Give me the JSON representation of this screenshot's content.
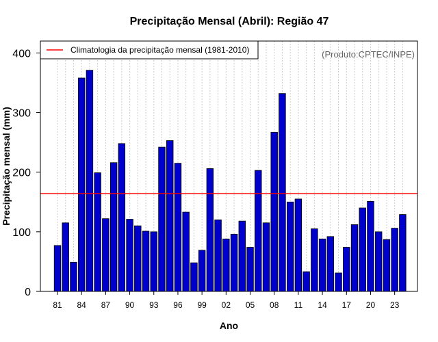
{
  "chart_data": {
    "type": "bar",
    "title": "Precipitação Mensal (Abril): Região 47",
    "xlabel": "Ano",
    "ylabel": "Precipitação mensal (mm)",
    "ylim": [
      0,
      420
    ],
    "yticks": [
      "0",
      "100",
      "200",
      "300",
      "400"
    ],
    "categories": [
      "1981",
      "1982",
      "1983",
      "1984",
      "1985",
      "1986",
      "1987",
      "1988",
      "1989",
      "1990",
      "1991",
      "1992",
      "1993",
      "1994",
      "1995",
      "1996",
      "1997",
      "1998",
      "1999",
      "2000",
      "2001",
      "2002",
      "2003",
      "2004",
      "2005",
      "2006",
      "2007",
      "2008",
      "2009",
      "2010",
      "2011",
      "2012",
      "2013",
      "2014",
      "2015",
      "2016",
      "2017",
      "2018",
      "2019",
      "2020",
      "2021",
      "2022",
      "2023",
      "2024"
    ],
    "values": [
      77,
      115,
      49,
      358,
      371,
      199,
      122,
      216,
      248,
      121,
      110,
      101,
      100,
      242,
      253,
      215,
      133,
      48,
      69,
      206,
      120,
      88,
      96,
      118,
      74,
      203,
      115,
      267,
      332,
      150,
      155,
      33,
      105,
      88,
      92,
      31,
      74,
      112,
      140,
      151,
      100,
      87,
      106,
      129
    ],
    "xtick_labels": [
      {
        "index": 0,
        "label": "81"
      },
      {
        "index": 3,
        "label": "84"
      },
      {
        "index": 6,
        "label": "87"
      },
      {
        "index": 9,
        "label": "90"
      },
      {
        "index": 12,
        "label": "93"
      },
      {
        "index": 15,
        "label": "96"
      },
      {
        "index": 18,
        "label": "99"
      },
      {
        "index": 21,
        "label": "02"
      },
      {
        "index": 24,
        "label": "05"
      },
      {
        "index": 27,
        "label": "08"
      },
      {
        "index": 30,
        "label": "11"
      },
      {
        "index": 33,
        "label": "14"
      },
      {
        "index": 36,
        "label": "17"
      },
      {
        "index": 39,
        "label": "20"
      },
      {
        "index": 42,
        "label": "23"
      }
    ],
    "climatology": {
      "label": "Climatologia da precipitação mensal (1981-2010)",
      "value": 164
    },
    "legend_position": "top-left",
    "annotation": "(Produto:CPTEC/INPE)",
    "grid": "vertical dotted",
    "colors": {
      "bar_fill": "#0000cd",
      "bar_stroke": "#000000",
      "line": "#ff0000",
      "grid": "#cccccc",
      "annotation": "#666666"
    }
  }
}
